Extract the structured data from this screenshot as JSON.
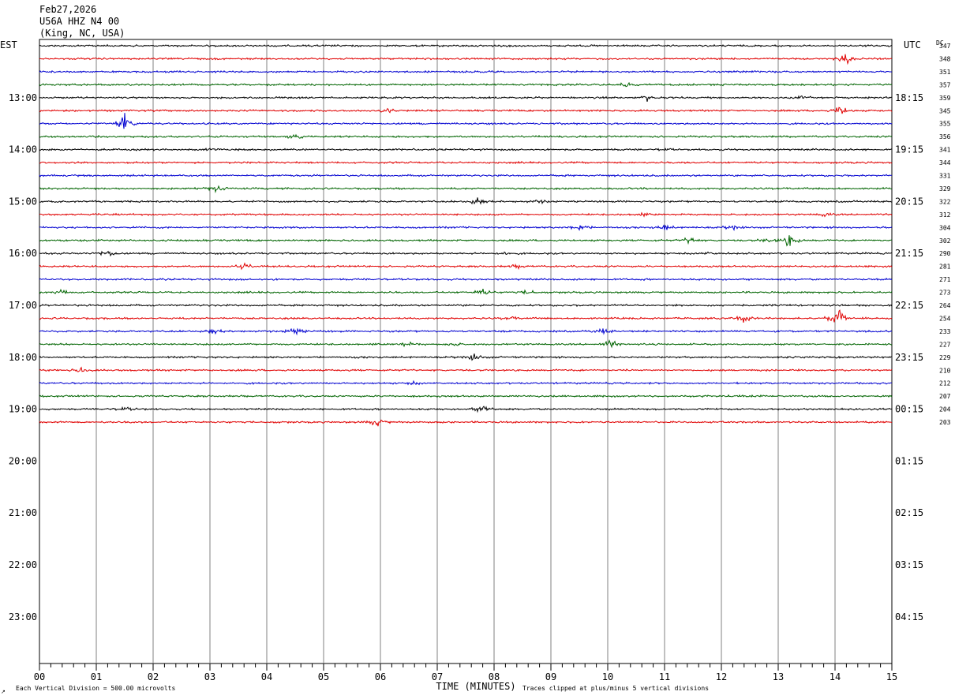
{
  "header": {
    "date": "Feb27,2026",
    "station": "U56A HHZ N4 00",
    "location": "(King, NC, USA)"
  },
  "labels": {
    "left_tz": "EST",
    "right_tz": "UTC",
    "dc_header": "DC",
    "x_axis_title": "TIME (MINUTES)",
    "footer_left": "Each Vertical Division =  500.00 microvolts",
    "footer_right": "Traces clipped at plus/minus 5 vertical divisions",
    "corner_mark": "↗"
  },
  "chart_data": {
    "type": "line",
    "title": "U56A HHZ N4 00 (King, NC, USA) Feb27,2026",
    "xlabel": "TIME (MINUTES)",
    "xlim": [
      0,
      15
    ],
    "x_ticks": [
      "00",
      "01",
      "02",
      "03",
      "04",
      "05",
      "06",
      "07",
      "08",
      "09",
      "10",
      "11",
      "12",
      "13",
      "14",
      "15"
    ],
    "left_hour_labels": [
      "13:00",
      "14:00",
      "15:00",
      "16:00",
      "17:00",
      "18:00",
      "19:00",
      "20:00",
      "21:00",
      "22:00",
      "23:00"
    ],
    "right_hour_labels": [
      "18:15",
      "19:15",
      "20:15",
      "21:15",
      "22:15",
      "23:15",
      "00:15",
      "01:15",
      "02:15",
      "03:15",
      "04:15"
    ],
    "trace_colors": [
      "#000000",
      "#e00000",
      "#0000d0",
      "#006400"
    ],
    "dc_offsets": [
      347,
      348,
      351,
      357,
      359,
      345,
      355,
      356,
      341,
      344,
      331,
      329,
      322,
      312,
      304,
      302,
      290,
      281,
      271,
      273,
      264,
      254,
      233,
      227,
      229,
      210,
      212,
      207,
      204,
      203
    ],
    "events": [
      {
        "trace": 1,
        "minute": 14.2,
        "amp": 3
      },
      {
        "trace": 3,
        "minute": 10.3,
        "amp": 1.2
      },
      {
        "trace": 4,
        "minute": 10.7,
        "amp": 1.5
      },
      {
        "trace": 4,
        "minute": 13.45,
        "amp": 0.8
      },
      {
        "trace": 5,
        "minute": 6.15,
        "amp": 1.5
      },
      {
        "trace": 5,
        "minute": 14.1,
        "amp": 2.5
      },
      {
        "trace": 6,
        "minute": 1.5,
        "amp": 5
      },
      {
        "trace": 7,
        "minute": 4.5,
        "amp": 1.5
      },
      {
        "trace": 8,
        "minute": 3.05,
        "amp": 0.8
      },
      {
        "trace": 8,
        "minute": 11.0,
        "amp": 0.6
      },
      {
        "trace": 11,
        "minute": 3.1,
        "amp": 1.6
      },
      {
        "trace": 12,
        "minute": 7.7,
        "amp": 2
      },
      {
        "trace": 12,
        "minute": 8.8,
        "amp": 0.8
      },
      {
        "trace": 13,
        "minute": 10.6,
        "amp": 0.6
      },
      {
        "trace": 13,
        "minute": 13.8,
        "amp": 0.8
      },
      {
        "trace": 14,
        "minute": 9.5,
        "amp": 2
      },
      {
        "trace": 14,
        "minute": 11.0,
        "amp": 1.5
      },
      {
        "trace": 14,
        "minute": 12.2,
        "amp": 1.2
      },
      {
        "trace": 15,
        "minute": 11.45,
        "amp": 2
      },
      {
        "trace": 15,
        "minute": 13.2,
        "amp": 3.5
      },
      {
        "trace": 15,
        "minute": 12.8,
        "amp": 0.8
      },
      {
        "trace": 16,
        "minute": 1.2,
        "amp": 2
      },
      {
        "trace": 16,
        "minute": 8.2,
        "amp": 0.8
      },
      {
        "trace": 16,
        "minute": 11.8,
        "amp": 0.6
      },
      {
        "trace": 17,
        "minute": 3.6,
        "amp": 1.6
      },
      {
        "trace": 17,
        "minute": 8.4,
        "amp": 0.8
      },
      {
        "trace": 19,
        "minute": 0.4,
        "amp": 1.2
      },
      {
        "trace": 19,
        "minute": 7.8,
        "amp": 1.8
      },
      {
        "trace": 19,
        "minute": 8.6,
        "amp": 1.2
      },
      {
        "trace": 21,
        "minute": 12.4,
        "amp": 2
      },
      {
        "trace": 21,
        "minute": 14.05,
        "amp": 5
      },
      {
        "trace": 21,
        "minute": 8.3,
        "amp": 0.7
      },
      {
        "trace": 22,
        "minute": 3.05,
        "amp": 1.2
      },
      {
        "trace": 22,
        "minute": 4.5,
        "amp": 2.2
      },
      {
        "trace": 22,
        "minute": 9.9,
        "amp": 1.4
      },
      {
        "trace": 23,
        "minute": 6.45,
        "amp": 1.5
      },
      {
        "trace": 23,
        "minute": 10.05,
        "amp": 2
      },
      {
        "trace": 23,
        "minute": 7.3,
        "amp": 0.8
      },
      {
        "trace": 24,
        "minute": 7.65,
        "amp": 2
      },
      {
        "trace": 25,
        "minute": 0.75,
        "amp": 1.4
      },
      {
        "trace": 26,
        "minute": 6.6,
        "amp": 0.7
      },
      {
        "trace": 27,
        "minute": 12.3,
        "amp": 0.6
      },
      {
        "trace": 28,
        "minute": 7.8,
        "amp": 2
      },
      {
        "trace": 28,
        "minute": 1.5,
        "amp": 0.8
      },
      {
        "trace": 29,
        "minute": 5.95,
        "amp": 2.2
      }
    ]
  }
}
